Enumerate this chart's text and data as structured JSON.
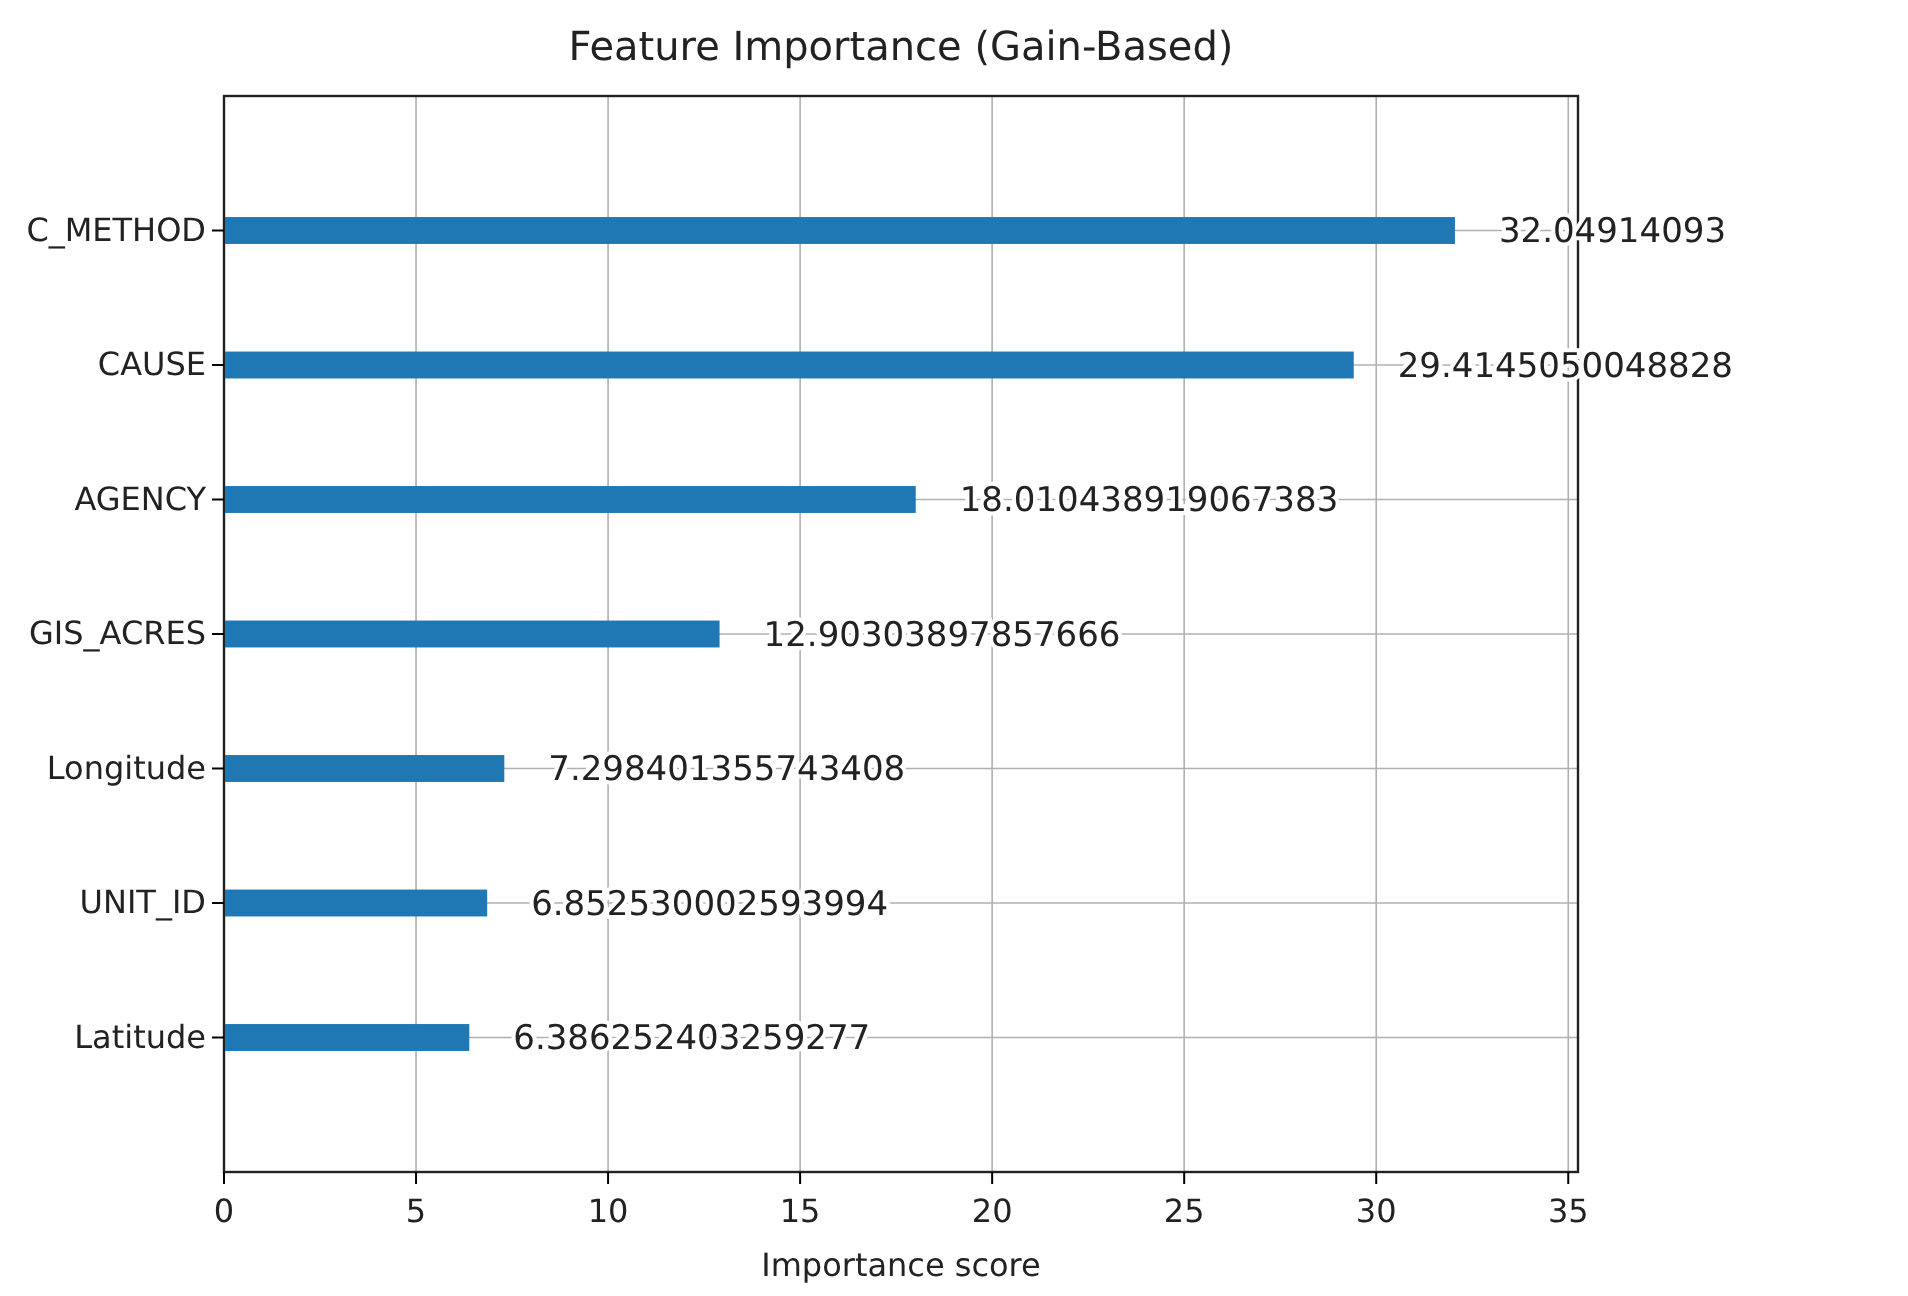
{
  "chart_data": {
    "type": "bar",
    "orientation": "horizontal",
    "title": "Feature Importance (Gain-Based)",
    "xlabel": "Importance score",
    "categories": [
      "C_METHOD",
      "CAUSE",
      "AGENCY",
      "GIS_ACRES",
      "Longitude",
      "UNIT_ID",
      "Latitude"
    ],
    "values": [
      32.04914093,
      29.4145050048828,
      18.010438919067383,
      12.90303897857666,
      7.298401355743408,
      6.852530002593994,
      6.386252403259277
    ],
    "color": "#1f77b4",
    "xlim": [
      0,
      35.254
    ],
    "xticks": [
      0,
      5,
      10,
      15,
      20,
      25,
      30,
      35
    ],
    "grid": true,
    "data_labels": true
  }
}
